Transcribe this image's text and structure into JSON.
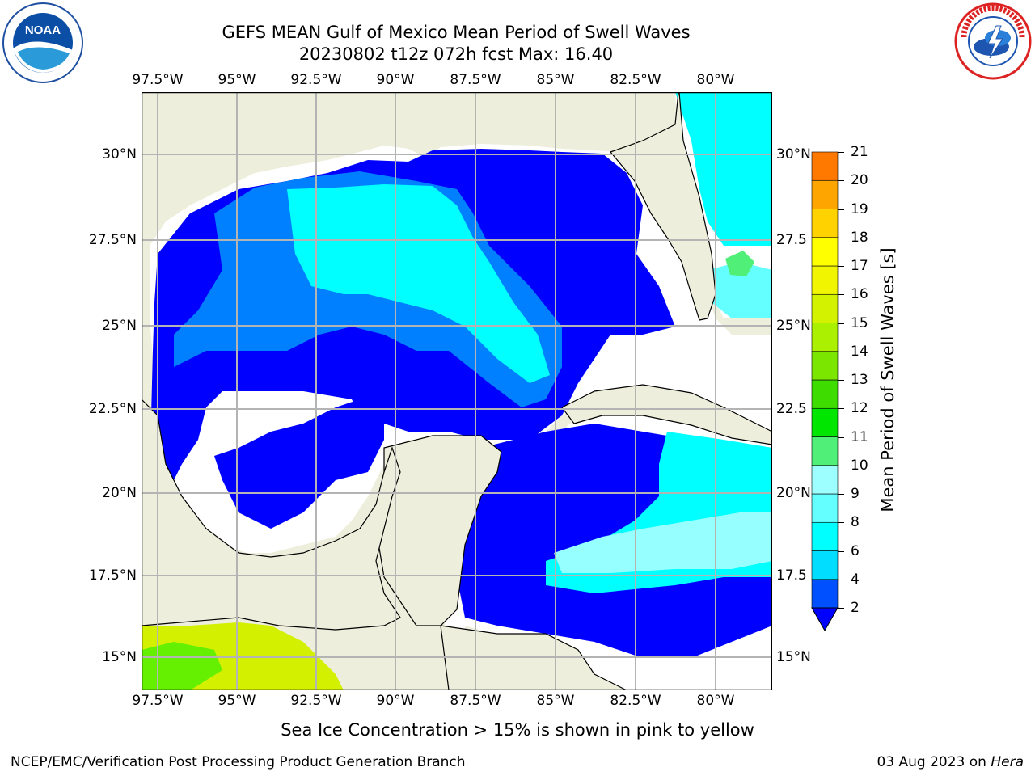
{
  "title": {
    "line1": "GEFS MEAN Gulf of Mexico Mean Period of Swell Waves",
    "line2": "20230802 t12z 072h fcst   Max: 16.40"
  },
  "map": {
    "lon_ticks": [
      "97.5°W",
      "95°W",
      "92.5°W",
      "90°W",
      "87.5°W",
      "85°W",
      "82.5°W",
      "80°W"
    ],
    "lat_ticks_left": [
      "30°N",
      "27.5°N",
      "25°N",
      "22.5°N",
      "20°N",
      "17.5°N",
      "15°N"
    ],
    "lat_ticks_right": [
      "30°N",
      "27.5",
      "25°N",
      "22.5",
      "20°N",
      "17.5",
      "15°N"
    ],
    "land_color": "#eeeedc",
    "grid_color": "#b4b4b4"
  },
  "colorbar": {
    "label": "Mean Period of Swell Waves [s]",
    "ticks": [
      "2",
      "4",
      "6",
      "8",
      "9",
      "10",
      "11",
      "12",
      "13",
      "14",
      "15",
      "16",
      "17",
      "18",
      "19",
      "20",
      "21"
    ],
    "colors": [
      "#0032ff",
      "#00d2ff",
      "#00ffff",
      "#64ffff",
      "#96ffff",
      "#50ff78",
      "#00e600",
      "#32dc00",
      "#96e600",
      "#c8f000",
      "#e6f500",
      "#ffff00",
      "#ffcd00",
      "#ffaa00",
      "#ff8200",
      "#ff5000",
      "#ff2800",
      "#ff0000"
    ]
  },
  "legend_levels": {
    "very_low": "#0000ff",
    "low": "#0080ff",
    "mid": "#00ffff",
    "light": "#96ffff",
    "green": "#50f078",
    "ice_yellow": "#d2f000",
    "ice_green": "#64f000"
  },
  "note": "Sea Ice Concentration > 15% is shown in pink to yellow",
  "footer": {
    "left": "NCEP/EMC/Verification Post Processing Product Generation Branch",
    "right_date": "03 Aug 2023 on ",
    "right_machine": "Hera"
  },
  "logos": {
    "noaa": "NOAA",
    "nws": "NATIONAL WEATHER SERVICE"
  }
}
